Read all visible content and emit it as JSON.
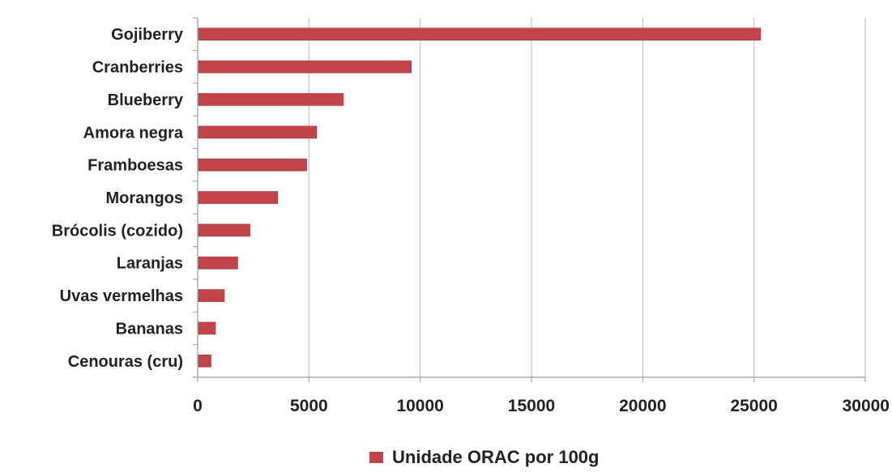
{
  "colors": {
    "bar": "#c0444a",
    "bar_edge": "#9e3338",
    "grid": "#b8b8b8",
    "axis": "#9a9a9a",
    "text": "#222222"
  },
  "chart_data": {
    "type": "bar",
    "orientation": "horizontal",
    "title": "",
    "xlabel": "",
    "ylabel": "",
    "categories": [
      "Gojiberry",
      "Cranberries",
      "Blueberry",
      "Amora negra",
      "Framboesas",
      "Morangos",
      "Brócolis (cozido)",
      "Laranjas",
      "Uvas vermelhas",
      "Bananas",
      "Cenouras (cru)"
    ],
    "series": [
      {
        "name": "Unidade ORAC por 100g",
        "values": [
          25300,
          9600,
          6550,
          5350,
          4900,
          3600,
          2350,
          1800,
          1200,
          800,
          600
        ]
      }
    ],
    "xlim": [
      0,
      30000
    ],
    "xticks": [
      "0",
      "5000",
      "10000",
      "15000",
      "20000",
      "25000",
      "30000"
    ],
    "grid": true,
    "legend": "bottom"
  }
}
